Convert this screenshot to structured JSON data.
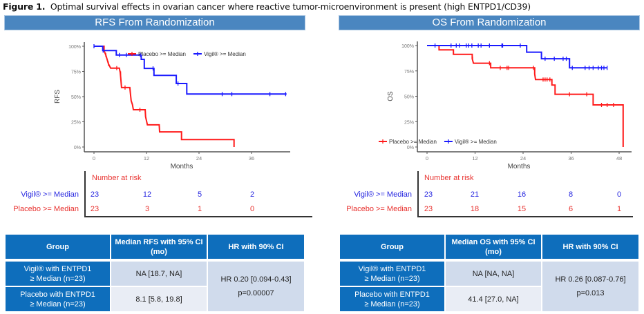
{
  "figure": {
    "label": "Figure 1.",
    "caption": "Optimal survival effects in ovarian cancer where reactive tumor-microenvironment is present (high ENTPD1/CD39)"
  },
  "colors": {
    "placebo": "#ff1a1a",
    "vigil": "#1a1aff",
    "banner": "#4a86c0",
    "table_header": "#0e6ebc"
  },
  "rfs": {
    "banner": "RFS From Randomization",
    "risk": {
      "header": "Number at risk",
      "rows": [
        {
          "label": "Vigil® >= Median",
          "values": [
            "23",
            "12",
            "5",
            "2"
          ]
        },
        {
          "label": "Placebo >= Median",
          "values": [
            "23",
            "3",
            "1",
            "0"
          ]
        }
      ]
    },
    "table": {
      "headers": [
        "Group",
        "Median RFS with 95% CI (mo)",
        "HR with 90% CI"
      ],
      "rows": [
        {
          "group_l1": "Vigil® with ENTPD1",
          "group_l2": "≥ Median (n=23)",
          "median": "NA [18.7, NA]"
        },
        {
          "group_l1": "Placebo with ENTPD1",
          "group_l2": "≥ Median (n=23)",
          "median": "8.1 [5.8, 19.8]"
        }
      ],
      "hr": "HR 0.20 [0.094-0.43]",
      "p": "p=0.00007"
    }
  },
  "os": {
    "banner": "OS From Randomization",
    "risk": {
      "header": "Number at risk",
      "rows": [
        {
          "label": "Vigil® >= Median",
          "values": [
            "23",
            "21",
            "16",
            "8",
            "0"
          ]
        },
        {
          "label": "Placebo >= Median",
          "values": [
            "23",
            "18",
            "15",
            "6",
            "1"
          ]
        }
      ]
    },
    "table": {
      "headers": [
        "Group",
        "Median OS with 95% CI (mo)",
        "HR with 90% CI"
      ],
      "rows": [
        {
          "group_l1": "Vigil® with ENTPD1",
          "group_l2": "≥ Median (n=23)",
          "median": "NA [NA, NA]"
        },
        {
          "group_l1": "Placebo with ENTPD1",
          "group_l2": "≥ Median (n=23)",
          "median": "41.4 [27.0, NA]"
        }
      ],
      "hr": "HR 0.26 [0.087-0.76]",
      "p": "p=0.013"
    }
  },
  "chart_data": [
    {
      "type": "line",
      "subtype": "kaplan-meier",
      "title": "RFS From Randomization",
      "xlabel": "Months",
      "ylabel": "RFS",
      "xlim": [
        0,
        44
      ],
      "ylim": [
        0,
        1
      ],
      "xticks": [
        0,
        12,
        24,
        36
      ],
      "xtick_labels": [
        "0",
        "12",
        "24",
        "36"
      ],
      "yticks": [
        0,
        0.25,
        0.5,
        0.75,
        1
      ],
      "ytick_labels": [
        "0%",
        "25%",
        "50%",
        "75%",
        "100%"
      ],
      "grid": false,
      "legend": "top-right",
      "series": [
        {
          "name": "Placebo >= Median",
          "color": "#ff1a1a",
          "steps": [
            [
              0,
              1.0
            ],
            [
              2.3,
              1.0
            ],
            [
              2.3,
              0.957
            ],
            [
              2.7,
              0.913
            ],
            [
              3.0,
              0.87
            ],
            [
              3.3,
              0.826
            ],
            [
              3.8,
              0.783
            ],
            [
              5.8,
              0.783
            ],
            [
              6.0,
              0.739
            ],
            [
              6.1,
              0.696
            ],
            [
              6.3,
              0.59
            ],
            [
              8.2,
              0.59
            ],
            [
              8.3,
              0.54
            ],
            [
              8.5,
              0.46
            ],
            [
              8.8,
              0.42
            ],
            [
              9.0,
              0.37
            ],
            [
              11.7,
              0.37
            ],
            [
              11.8,
              0.3
            ],
            [
              12.2,
              0.22
            ],
            [
              14.9,
              0.22
            ],
            [
              15.0,
              0.15
            ],
            [
              20.0,
              0.15
            ],
            [
              20.0,
              0.074
            ],
            [
              32.0,
              0.074
            ],
            [
              32.0,
              0.0
            ]
          ],
          "censors": [
            [
              2.7,
              0.913
            ],
            [
              3.3,
              0.826
            ],
            [
              5.2,
              0.783
            ],
            [
              6.1,
              0.73
            ],
            [
              7.1,
              0.59
            ],
            [
              10.5,
              0.37
            ]
          ]
        },
        {
          "name": "Vigil® >= Median",
          "color": "#1a1aff",
          "steps": [
            [
              0,
              1.0
            ],
            [
              2.0,
              1.0
            ],
            [
              2.0,
              0.957
            ],
            [
              5.1,
              0.957
            ],
            [
              5.1,
              0.913
            ],
            [
              10.8,
              0.913
            ],
            [
              10.8,
              0.87
            ],
            [
              11.5,
              0.87
            ],
            [
              11.5,
              0.78
            ],
            [
              13.7,
              0.78
            ],
            [
              13.7,
              0.71
            ],
            [
              18.8,
              0.71
            ],
            [
              18.8,
              0.63
            ],
            [
              21.2,
              0.63
            ],
            [
              21.2,
              0.525
            ],
            [
              44,
              0.525
            ]
          ],
          "censors": [
            [
              0,
              1.0
            ],
            [
              2.1,
              0.957
            ],
            [
              5.8,
              0.913
            ],
            [
              7.4,
              0.913
            ],
            [
              10.6,
              0.913
            ],
            [
              13.5,
              0.78
            ],
            [
              19.2,
              0.63
            ],
            [
              29.3,
              0.525
            ],
            [
              31.5,
              0.525
            ],
            [
              40.2,
              0.525
            ],
            [
              43.8,
              0.525
            ]
          ]
        }
      ]
    },
    {
      "type": "line",
      "subtype": "kaplan-meier",
      "title": "OS From Randomization",
      "xlabel": "Months",
      "ylabel": "OS",
      "xlim": [
        0,
        50
      ],
      "ylim": [
        0,
        1
      ],
      "xticks": [
        0,
        12,
        24,
        36,
        48
      ],
      "xtick_labels": [
        "0",
        "12",
        "24",
        "36",
        "48"
      ],
      "yticks": [
        0,
        0.25,
        0.5,
        0.75,
        1
      ],
      "ytick_labels": [
        "0%",
        "25%",
        "50%",
        "75%",
        "100%"
      ],
      "grid": false,
      "legend": "bottom-left",
      "series": [
        {
          "name": "Placebo >= Median",
          "color": "#ff1a1a",
          "steps": [
            [
              0,
              1.0
            ],
            [
              3.0,
              1.0
            ],
            [
              3.0,
              0.957
            ],
            [
              6.6,
              0.957
            ],
            [
              6.6,
              0.913
            ],
            [
              11.3,
              0.913
            ],
            [
              11.3,
              0.87
            ],
            [
              11.6,
              0.826
            ],
            [
              15.9,
              0.826
            ],
            [
              15.9,
              0.78
            ],
            [
              26.9,
              0.78
            ],
            [
              26.9,
              0.72
            ],
            [
              27.1,
              0.665
            ],
            [
              31.2,
              0.665
            ],
            [
              31.2,
              0.61
            ],
            [
              32.0,
              0.61
            ],
            [
              32.0,
              0.52
            ],
            [
              41.5,
              0.52
            ],
            [
              41.5,
              0.415
            ],
            [
              49.0,
              0.415
            ],
            [
              49.0,
              0.0
            ]
          ],
          "censors": [
            [
              11.4,
              0.87
            ],
            [
              15.6,
              0.826
            ],
            [
              18.3,
              0.78
            ],
            [
              20.0,
              0.78
            ],
            [
              20.4,
              0.78
            ],
            [
              26.6,
              0.78
            ],
            [
              29.0,
              0.665
            ],
            [
              29.5,
              0.665
            ],
            [
              30.0,
              0.665
            ],
            [
              30.7,
              0.665
            ],
            [
              35.6,
              0.52
            ],
            [
              39.9,
              0.52
            ],
            [
              43.6,
              0.415
            ],
            [
              45.0,
              0.415
            ],
            [
              46.6,
              0.415
            ]
          ]
        },
        {
          "name": "Vigil® >= Median",
          "color": "#1a1aff",
          "steps": [
            [
              0,
              1.0
            ],
            [
              24.9,
              1.0
            ],
            [
              24.9,
              0.935
            ],
            [
              28.6,
              0.935
            ],
            [
              28.6,
              0.87
            ],
            [
              35.6,
              0.87
            ],
            [
              35.6,
              0.78
            ],
            [
              45,
              0.78
            ]
          ],
          "censors": [
            [
              2.0,
              1.0
            ],
            [
              6.0,
              1.0
            ],
            [
              7.3,
              1.0
            ],
            [
              8.1,
              1.0
            ],
            [
              9.8,
              1.0
            ],
            [
              10.4,
              1.0
            ],
            [
              11.2,
              1.0
            ],
            [
              12.8,
              1.0
            ],
            [
              13.5,
              1.0
            ],
            [
              15.6,
              1.0
            ],
            [
              18.7,
              1.0
            ],
            [
              18.9,
              1.0
            ],
            [
              23.3,
              1.0
            ],
            [
              29.5,
              0.87
            ],
            [
              31.8,
              0.87
            ],
            [
              34.0,
              0.87
            ],
            [
              34.8,
              0.87
            ],
            [
              36.3,
              0.78
            ],
            [
              39.5,
              0.78
            ],
            [
              40.5,
              0.78
            ],
            [
              41.5,
              0.78
            ],
            [
              42.8,
              0.78
            ],
            [
              43.6,
              0.78
            ],
            [
              44.2,
              0.78
            ],
            [
              45,
              0.78
            ]
          ]
        }
      ]
    }
  ]
}
